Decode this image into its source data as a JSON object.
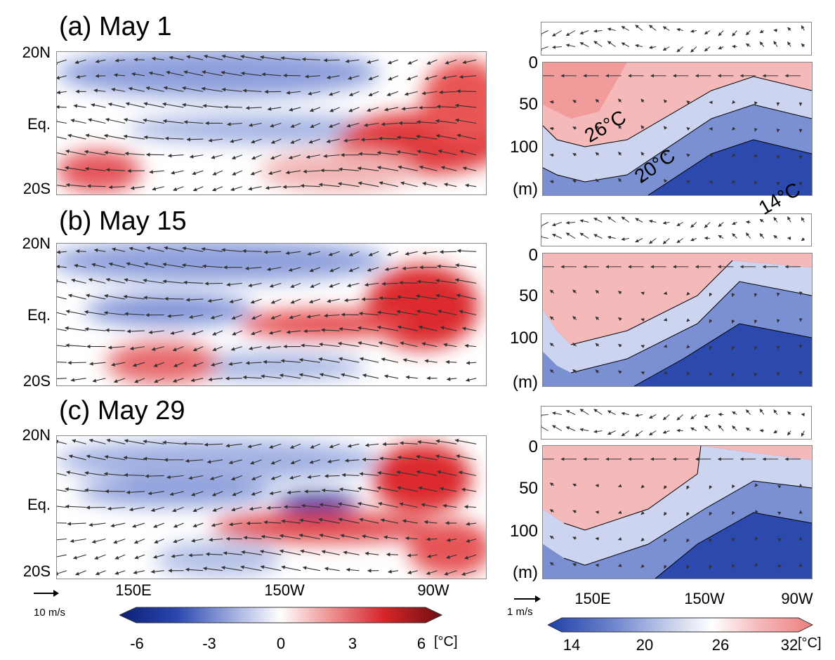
{
  "panels": [
    {
      "id": "a",
      "title": "(a) May 1"
    },
    {
      "id": "b",
      "title": "(b) May 15"
    },
    {
      "id": "c",
      "title": "(c) May 29"
    }
  ],
  "map_axis": {
    "lat_labels": [
      "20N",
      "Eq.",
      "20S"
    ],
    "lon_labels": [
      "150E",
      "150W",
      "90W"
    ]
  },
  "section_axis": {
    "depth_labels": [
      "0",
      "50",
      "100",
      "(m)"
    ],
    "lon_labels": [
      "150E",
      "150W",
      "90W"
    ]
  },
  "isotherm_labels": [
    "26°C",
    "20°C",
    "14°C"
  ],
  "sst_anomaly_colorbar": {
    "ticks": [
      "-6",
      "-3",
      "0",
      "3",
      "6"
    ],
    "unit": "[°C]",
    "colors": [
      "#0b1f73",
      "#2b48b0",
      "#8ea0d9",
      "#ffffff",
      "#f08a8a",
      "#d6262a",
      "#6e0e10"
    ]
  },
  "temperature_colorbar": {
    "ticks": [
      "14",
      "20",
      "26",
      "32"
    ],
    "unit": "[°C]",
    "colors": [
      "#1e3fa8",
      "#6f86cc",
      "#c9d1ec",
      "#ffffff",
      "#f5b8b8",
      "#ec7f7f"
    ]
  },
  "wind_scale_label": "10 m/s",
  "current_scale_label": "1 m/s"
}
